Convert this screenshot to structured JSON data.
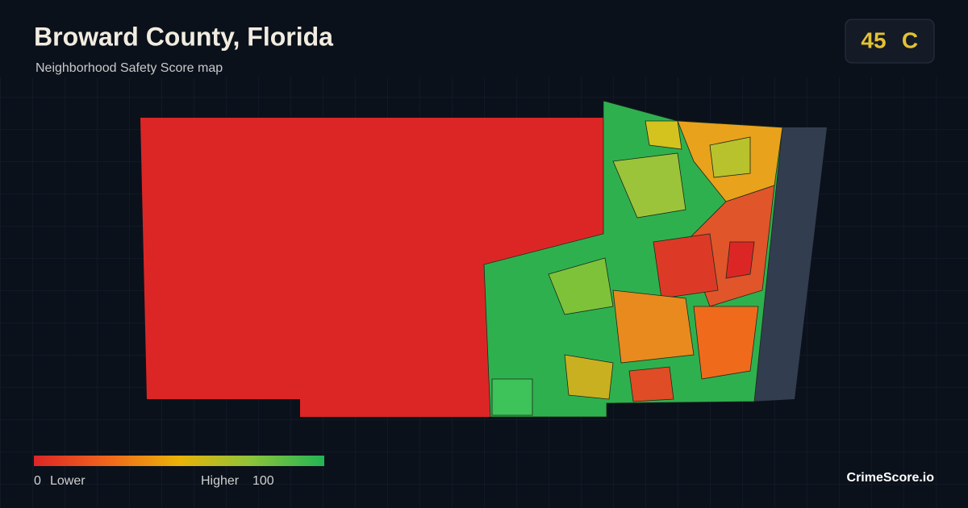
{
  "header": {
    "title": "Broward County, Florida",
    "subtitle": "Neighborhood Safety Score map"
  },
  "score": {
    "value": 45,
    "grade": "C"
  },
  "legend": {
    "min": 0,
    "low_label": "Lower",
    "high_label": "Higher",
    "max": 100,
    "colors": [
      "#dc2626",
      "#f0651c",
      "#eab308",
      "#8cc43a",
      "#22b455"
    ]
  },
  "footer": {
    "brand": "CrimeScore.io"
  }
}
